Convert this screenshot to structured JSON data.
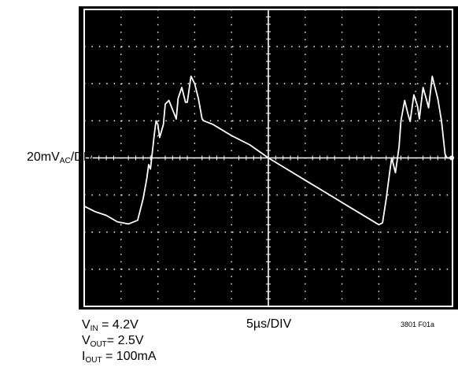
{
  "chart_data": {
    "type": "line",
    "title": "",
    "xlabel": "",
    "ylabel": "",
    "x_divisions": 10,
    "y_divisions": 8,
    "grid": true,
    "background": "#000000",
    "trace_color": "#ffffff",
    "x_unit": "div",
    "y_unit": "div",
    "vertical_scale": {
      "value": "20mV",
      "sub": "AC",
      "suffix": "/DIV"
    },
    "horizontal_scale": "5µs/DIV",
    "series": [
      {
        "values_x": [
          0.0,
          0.3,
          0.6,
          0.9,
          1.2,
          1.45,
          1.6,
          1.7,
          1.75,
          1.8,
          1.9,
          1.95,
          2.0,
          2.05,
          2.15,
          2.2,
          2.3,
          2.4,
          2.5,
          2.55,
          2.65,
          2.75,
          2.8,
          2.9,
          3.0,
          3.1,
          3.2,
          3.25,
          3.5,
          4.0,
          4.5,
          5.0,
          5.5,
          6.0,
          6.5,
          7.0,
          7.5,
          8.0,
          8.1,
          8.2,
          8.3,
          8.35,
          8.45,
          8.55,
          8.6,
          8.7,
          8.8,
          8.85,
          8.95,
          9.05,
          9.1,
          9.2,
          9.3,
          9.35,
          9.45,
          9.55,
          9.6,
          9.7,
          9.8,
          9.85,
          9.95,
          10.0
        ],
        "values_y": [
          -1.3,
          -1.45,
          -1.55,
          -1.72,
          -1.78,
          -1.68,
          -1.1,
          -0.55,
          -0.18,
          -0.3,
          0.6,
          1.0,
          0.9,
          0.55,
          0.9,
          1.45,
          1.55,
          1.3,
          1.05,
          1.6,
          1.9,
          1.5,
          1.5,
          2.2,
          2.0,
          1.6,
          1.05,
          1.0,
          0.9,
          0.6,
          0.35,
          0.0,
          -0.3,
          -0.6,
          -0.9,
          -1.2,
          -1.5,
          -1.8,
          -1.75,
          -1.1,
          -0.35,
          0.0,
          -0.4,
          0.3,
          1.0,
          1.55,
          1.15,
          0.98,
          1.7,
          1.4,
          1.05,
          1.9,
          1.55,
          1.35,
          2.2,
          1.8,
          1.6,
          1.0,
          0.1,
          0.0,
          0.0,
          0.0
        ]
      }
    ]
  },
  "conditions": [
    {
      "name": "V",
      "sub": "IN",
      "value": " = 4.2V"
    },
    {
      "name": "V",
      "sub": "OUT",
      "value": "= 2.5V"
    },
    {
      "name": "I",
      "sub": "OUT",
      "value": " = 100mA"
    }
  ],
  "figure_id": "3801 F01a"
}
